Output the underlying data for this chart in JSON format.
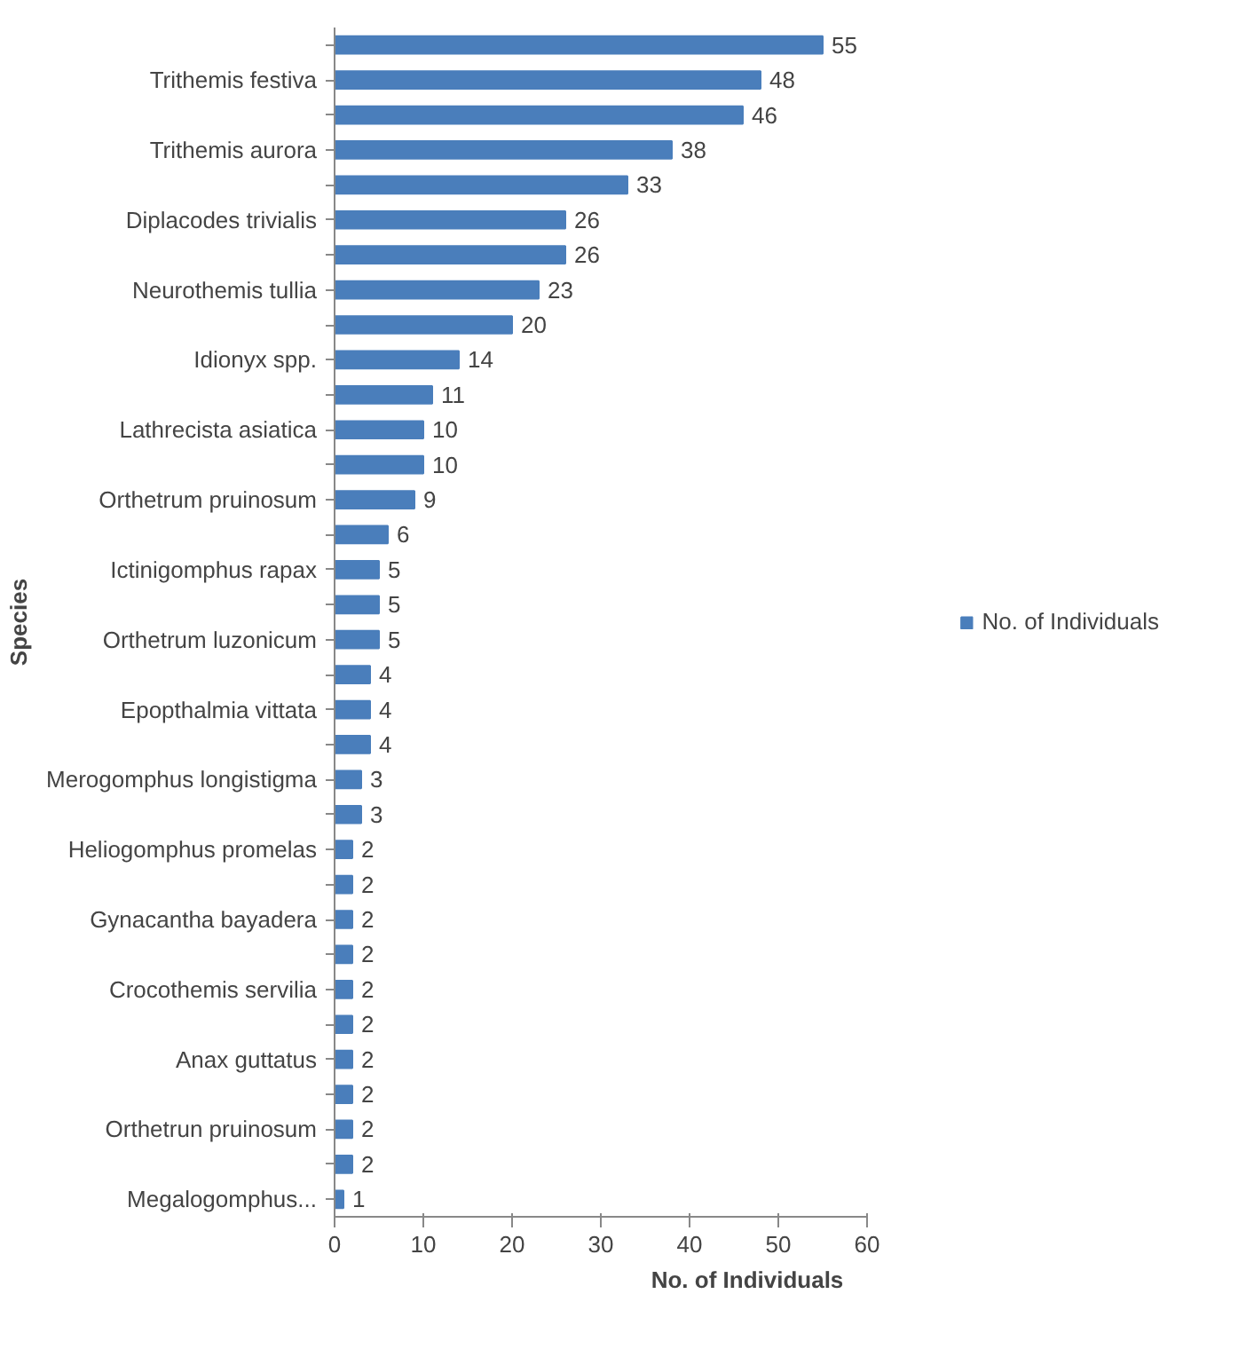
{
  "chart_data": {
    "type": "bar",
    "orientation": "horizontal",
    "xlabel": "No. of Individuals",
    "ylabel": "Species",
    "categories": [
      null,
      "Trithemis festiva",
      null,
      "Trithemis aurora",
      null,
      "Diplacodes trivialis",
      null,
      "Neurothemis tullia",
      null,
      "Idionyx spp.",
      null,
      "Lathrecista asiatica",
      null,
      "Orthetrum pruinosum",
      null,
      "Ictinigomphus rapax",
      null,
      "Orthetrum luzonicum",
      null,
      "Epopthalmia vittata",
      null,
      "Merogomphus longistigma",
      null,
      "Heliogomphus promelas",
      null,
      "Gynacantha bayadera",
      null,
      "Crocothemis servilia",
      null,
      "Anax guttatus",
      null,
      "Orthetrun pruinosum",
      null,
      "Megalogomphus..."
    ],
    "series": [
      {
        "name": "No. of Individuals",
        "color": "#4a7ebb",
        "values": [
          55,
          48,
          46,
          38,
          33,
          26,
          26,
          23,
          20,
          14,
          11,
          10,
          10,
          9,
          6,
          5,
          5,
          5,
          4,
          4,
          4,
          3,
          3,
          2,
          2,
          2,
          2,
          2,
          2,
          2,
          2,
          2,
          2,
          1
        ]
      }
    ],
    "xlim": [
      0,
      60
    ],
    "xticks": [
      0,
      10,
      20,
      30,
      40,
      50,
      60
    ],
    "grid": false,
    "legend": "right",
    "data_labels": true
  }
}
